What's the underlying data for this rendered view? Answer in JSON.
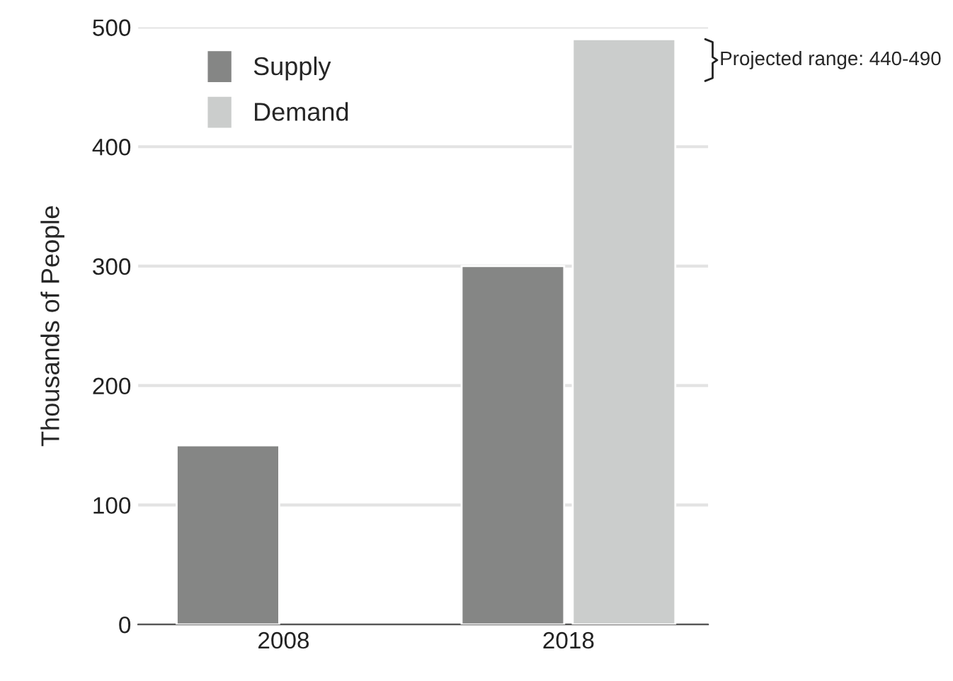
{
  "chart_data": {
    "type": "bar",
    "ylabel": "Thousands of People",
    "categories": [
      "2008",
      "2018"
    ],
    "series": [
      {
        "name": "Supply",
        "color": "#858685",
        "values": [
          150,
          300
        ]
      },
      {
        "name": "Demand",
        "color": "#cbcdcc",
        "values": [
          null,
          490
        ]
      }
    ],
    "ylim": [
      0,
      500
    ],
    "yticks": [
      0,
      100,
      200,
      300,
      400,
      500
    ],
    "grid": "y",
    "legend": "top left",
    "annotations": [
      "Projected range: 440-490"
    ]
  }
}
